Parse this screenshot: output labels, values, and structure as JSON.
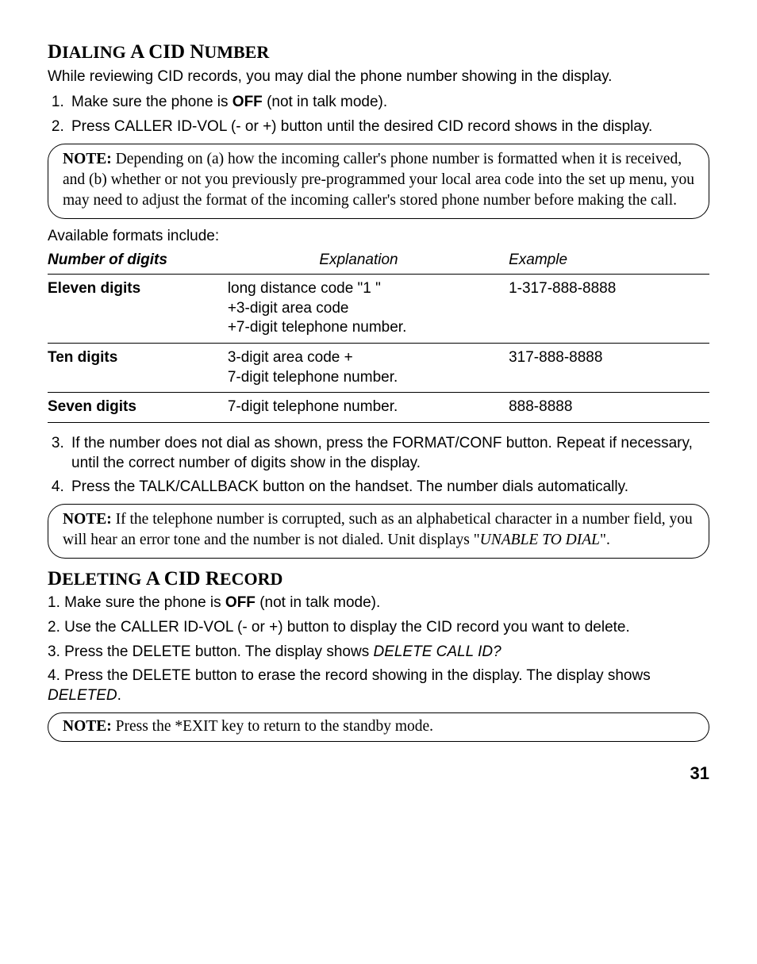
{
  "section1": {
    "heading_parts": {
      "p1": "D",
      "p2": "IALING",
      " p3": " ",
      "p4": "A",
      "p5": " CID N",
      "p6": "UMBER"
    },
    "intro": "While reviewing CID records, you may dial the phone number showing in the display.",
    "steps": {
      "s1a": "Make sure the phone is ",
      "s1b": "OFF",
      "s1c": " (not in talk mode).",
      "s2": "Press CALLER ID-VOL (- or +) button until the desired CID record shows in the display."
    },
    "note1": {
      "label": "NOTE:",
      "text": " Depending on (a) how the incoming caller's phone number is formatted when it is received, and (b) whether or not you previously pre-programmed your local area code into the set up menu, you may need to adjust the format of the incoming caller's stored phone number before making the call."
    },
    "formats_title": "Available formats include:",
    "table": {
      "headers": {
        "h1": "Number of digits",
        "h2": "Explanation",
        "h3": "Example"
      },
      "rows": [
        {
          "c1": "Eleven digits",
          "c2": "long distance code \"1 \" +3-digit area code +7-digit telephone number.",
          "c3": "1-317-888-8888"
        },
        {
          "c1": "Ten digits",
          "c2": "3-digit area code + 7-digit telephone number.",
          "c3": "317-888-8888"
        },
        {
          "c1": "Seven digits",
          "c2": "7-digit telephone number.",
          "c3": "888-8888"
        }
      ]
    },
    "steps2": {
      "s3": "If the number does not dial as shown, press the FORMAT/CONF button. Repeat if necessary, until the correct number of digits show in the display.",
      "s4": "Press the TALK/CALLBACK button on the handset. The number dials automatically."
    },
    "note2": {
      "label": "NOTE:",
      "text_a": " If the telephone number is corrupted, such as an alphabetical character in a number field, you will hear an error tone and the number is not dialed. Unit displays \"",
      "text_b": "UNABLE TO DIAL",
      "text_c": "\"."
    }
  },
  "section2": {
    "heading_parts": {
      "p1": "D",
      "p2": "ELETING",
      "p3": " ",
      "p4": "A",
      "p5": " CID R",
      "p6": "ECORD"
    },
    "steps": {
      "s1a": "1. Make sure the phone is ",
      "s1b": "OFF",
      "s1c": " (not in talk mode).",
      "s2": "2. Use the CALLER ID-VOL (- or +) button to display the CID record you want to delete.",
      "s3a": "3. Press the DELETE button. The display shows ",
      "s3b": "DELETE CALL ID?",
      "s4a": "4. Press the DELETE button to erase the record showing in the display. The display shows ",
      "s4b": "DELETED",
      "s4c": "."
    },
    "note3": {
      "label": "NOTE:",
      "text": " Press the *EXIT key to return to the standby mode."
    }
  },
  "page_number": "31"
}
